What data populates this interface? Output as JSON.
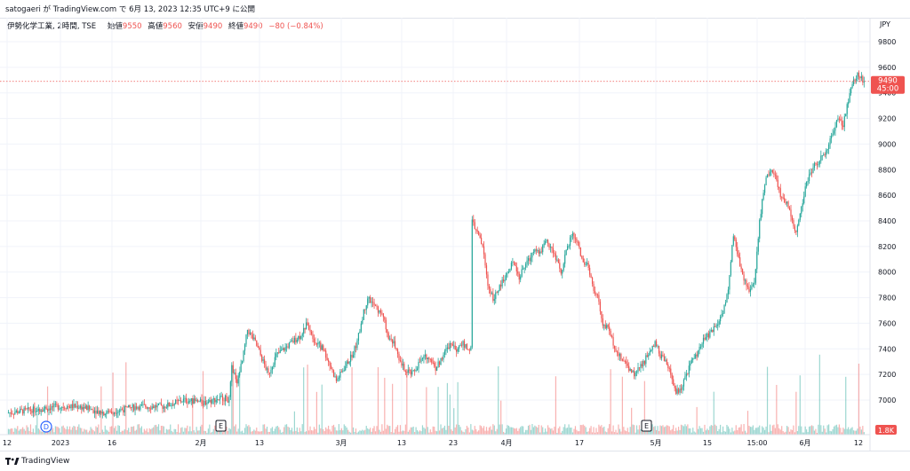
{
  "header": {
    "publish_line": "satogaeri が TradingView.com で 6月 13, 2023 12:35 UTC+9 に公開"
  },
  "legend": {
    "title": "伊勢化学工業, 2時間, TSE",
    "open_label": "始値",
    "open": "9550",
    "high_label": "高値",
    "high": "9560",
    "low_label": "安値",
    "low": "9490",
    "close_label": "終値",
    "close": "9490",
    "change": "−80 (−0.84%)"
  },
  "axis": {
    "currency": "JPY",
    "price_ticks": [
      "9800",
      "9600",
      "9400",
      "9200",
      "9000",
      "8800",
      "8600",
      "8400",
      "8200",
      "8000",
      "7800",
      "7600",
      "7400",
      "7200",
      "7000"
    ],
    "time_ticks": [
      "12",
      "2023",
      "16",
      "2月",
      "13",
      "3月",
      "13",
      "23",
      "4月",
      "17",
      "5月",
      "15",
      "15:00",
      "6月",
      "12"
    ],
    "last_price_label": "9490",
    "countdown_label": "45:00",
    "volume_label": "1.8K"
  },
  "markers": {
    "dividend": "D",
    "earnings_1": "E",
    "earnings_2": "E"
  },
  "footer": {
    "brand": "TradingView"
  },
  "colors": {
    "up": "#26a69a",
    "down": "#ef5350",
    "grid": "#f0f3fa",
    "text": "#131722"
  },
  "chart_data": {
    "type": "candlestick",
    "ylim": [
      7000,
      9800
    ],
    "last_price": 9490,
    "path": [
      [
        0,
        6900
      ],
      [
        40,
        6950
      ],
      [
        55,
        6950
      ],
      [
        75,
        6900
      ],
      [
        100,
        6950
      ],
      [
        120,
        6950
      ],
      [
        135,
        7000
      ],
      [
        150,
        6980
      ],
      [
        165,
        7020
      ],
      [
        170,
        7000
      ],
      [
        172,
        7250
      ],
      [
        176,
        7150
      ],
      [
        180,
        7300
      ],
      [
        184,
        7550
      ],
      [
        190,
        7450
      ],
      [
        196,
        7300
      ],
      [
        200,
        7200
      ],
      [
        206,
        7350
      ],
      [
        212,
        7400
      ],
      [
        218,
        7450
      ],
      [
        224,
        7500
      ],
      [
        230,
        7600
      ],
      [
        236,
        7450
      ],
      [
        242,
        7400
      ],
      [
        248,
        7250
      ],
      [
        252,
        7150
      ],
      [
        258,
        7250
      ],
      [
        264,
        7350
      ],
      [
        268,
        7450
      ],
      [
        272,
        7650
      ],
      [
        276,
        7800
      ],
      [
        280,
        7750
      ],
      [
        284,
        7700
      ],
      [
        288,
        7650
      ],
      [
        292,
        7500
      ],
      [
        296,
        7450
      ],
      [
        300,
        7300
      ],
      [
        304,
        7250
      ],
      [
        310,
        7200
      ],
      [
        316,
        7300
      ],
      [
        322,
        7350
      ],
      [
        328,
        7250
      ],
      [
        334,
        7350
      ],
      [
        340,
        7450
      ],
      [
        344,
        7400
      ],
      [
        348,
        7450
      ],
      [
        352,
        7400
      ],
      [
        355,
        7400
      ],
      [
        356,
        8400
      ],
      [
        360,
        8300
      ],
      [
        364,
        8200
      ],
      [
        368,
        7900
      ],
      [
        372,
        7800
      ],
      [
        376,
        7850
      ],
      [
        380,
        7950
      ],
      [
        384,
        8000
      ],
      [
        388,
        8100
      ],
      [
        392,
        7950
      ],
      [
        396,
        8050
      ],
      [
        400,
        8100
      ],
      [
        404,
        8200
      ],
      [
        408,
        8150
      ],
      [
        412,
        8250
      ],
      [
        416,
        8200
      ],
      [
        420,
        8100
      ],
      [
        424,
        8000
      ],
      [
        428,
        8150
      ],
      [
        432,
        8300
      ],
      [
        436,
        8250
      ],
      [
        440,
        8100
      ],
      [
        444,
        8050
      ],
      [
        448,
        7900
      ],
      [
        452,
        7800
      ],
      [
        456,
        7600
      ],
      [
        460,
        7550
      ],
      [
        464,
        7450
      ],
      [
        468,
        7350
      ],
      [
        472,
        7300
      ],
      [
        476,
        7250
      ],
      [
        480,
        7200
      ],
      [
        484,
        7250
      ],
      [
        488,
        7300
      ],
      [
        492,
        7400
      ],
      [
        496,
        7450
      ],
      [
        500,
        7350
      ],
      [
        504,
        7300
      ],
      [
        508,
        7200
      ],
      [
        512,
        7050
      ],
      [
        516,
        7100
      ],
      [
        520,
        7200
      ],
      [
        524,
        7300
      ],
      [
        528,
        7350
      ],
      [
        532,
        7450
      ],
      [
        536,
        7500
      ],
      [
        540,
        7550
      ],
      [
        544,
        7600
      ],
      [
        548,
        7700
      ],
      [
        552,
        7850
      ],
      [
        556,
        8300
      ],
      [
        560,
        8100
      ],
      [
        564,
        7950
      ],
      [
        568,
        7850
      ],
      [
        572,
        7900
      ],
      [
        576,
        8400
      ],
      [
        580,
        8700
      ],
      [
        584,
        8800
      ],
      [
        588,
        8750
      ],
      [
        592,
        8600
      ],
      [
        596,
        8550
      ],
      [
        600,
        8450
      ],
      [
        604,
        8300
      ],
      [
        608,
        8500
      ],
      [
        612,
        8700
      ],
      [
        616,
        8800
      ],
      [
        620,
        8850
      ],
      [
        624,
        8900
      ],
      [
        628,
        8950
      ],
      [
        632,
        9100
      ],
      [
        636,
        9200
      ],
      [
        640,
        9150
      ],
      [
        644,
        9350
      ],
      [
        648,
        9500
      ],
      [
        652,
        9550
      ],
      [
        656,
        9490
      ]
    ]
  }
}
